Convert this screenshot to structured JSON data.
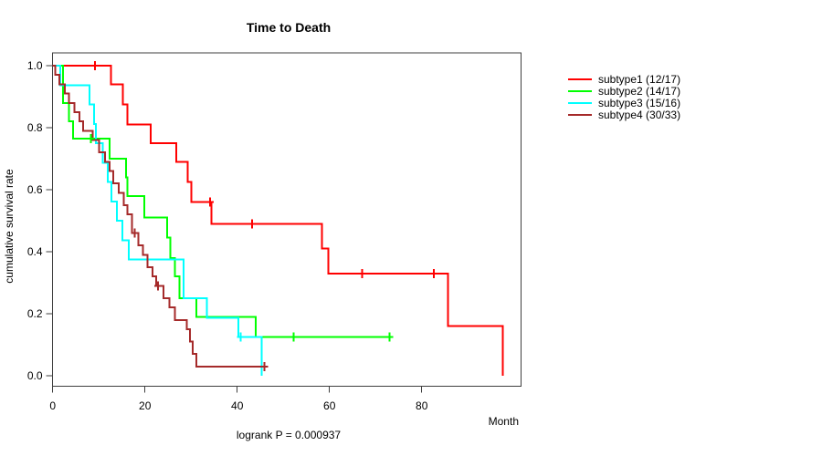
{
  "title": "Time to Death",
  "footnote": "logrank P = 0.000937",
  "axes": {
    "x_label": "Month",
    "y_label": "cumulative survival rate",
    "x_ticks": [
      0,
      20,
      40,
      60,
      80
    ],
    "y_ticks": [
      0.0,
      0.2,
      0.4,
      0.6,
      0.8,
      1.0
    ]
  },
  "legend": {
    "position": "right",
    "items": [
      {
        "label": "subtype1 (12/17)",
        "color": "#FF0000"
      },
      {
        "label": "subtype2 (14/17)",
        "color": "#00FF00"
      },
      {
        "label": "subtype3 (15/16)",
        "color": "#00FFFF"
      },
      {
        "label": "subtype4 (30/33)",
        "color": "#A52A2A"
      }
    ]
  },
  "chart_data": {
    "type": "line",
    "subtype": "kaplan_meier_step",
    "xlabel": "Month",
    "ylabel": "cumulative survival rate",
    "xlim": [
      0,
      101.5
    ],
    "ylim": [
      -0.03,
      1.04
    ],
    "grid": false,
    "legend_position": "right",
    "series": [
      {
        "name": "subtype1 (12/17)",
        "color": "#FF0000",
        "points": [
          [
            0,
            1.0
          ],
          [
            12.6,
            0.94
          ],
          [
            15.2,
            0.875
          ],
          [
            16.2,
            0.81
          ],
          [
            21.2,
            0.75
          ],
          [
            26.8,
            0.69
          ],
          [
            29.3,
            0.625
          ],
          [
            30.1,
            0.56
          ],
          [
            34.4,
            0.49
          ],
          [
            58.4,
            0.41
          ],
          [
            59.8,
            0.33
          ],
          [
            85.7,
            0.16
          ],
          [
            97.6,
            0.0
          ]
        ],
        "censors": [
          [
            9.2,
            1.0
          ],
          [
            34.1,
            0.56
          ],
          [
            43.2,
            0.49
          ],
          [
            67.1,
            0.33
          ],
          [
            82.6,
            0.33
          ]
        ],
        "end_time": 97.6
      },
      {
        "name": "subtype2 (14/17)",
        "color": "#00FF00",
        "points": [
          [
            0,
            1.0
          ],
          [
            2.2,
            0.88
          ],
          [
            3.5,
            0.82
          ],
          [
            4.4,
            0.765
          ],
          [
            12.3,
            0.7
          ],
          [
            15.9,
            0.64
          ],
          [
            16.2,
            0.58
          ],
          [
            19.9,
            0.51
          ],
          [
            24.8,
            0.445
          ],
          [
            25.5,
            0.38
          ],
          [
            26.5,
            0.32
          ],
          [
            27.5,
            0.25
          ],
          [
            31.1,
            0.19
          ],
          [
            44.0,
            0.125
          ]
        ],
        "censors": [
          [
            8.3,
            0.765
          ],
          [
            52.2,
            0.125
          ],
          [
            73.0,
            0.125
          ]
        ],
        "end_time": 73.0
      },
      {
        "name": "subtype3 (15/16)",
        "color": "#00FFFF",
        "points": [
          [
            0,
            1.0
          ],
          [
            1.6,
            0.9375
          ],
          [
            8.0,
            0.875
          ],
          [
            9.0,
            0.8125
          ],
          [
            9.4,
            0.75
          ],
          [
            10.9,
            0.6875
          ],
          [
            11.9,
            0.625
          ],
          [
            12.7,
            0.5625
          ],
          [
            13.9,
            0.5
          ],
          [
            15.1,
            0.4375
          ],
          [
            16.5,
            0.375
          ],
          [
            28.4,
            0.25
          ],
          [
            33.4,
            0.1875
          ],
          [
            40.3,
            0.125
          ],
          [
            45.3,
            0.0
          ]
        ],
        "censors": [
          [
            40.8,
            0.125
          ]
        ],
        "end_time": 45.3
      },
      {
        "name": "subtype4 (30/33)",
        "color": "#A52A2A",
        "points": [
          [
            0,
            1.0
          ],
          [
            0.6,
            0.97
          ],
          [
            1.4,
            0.94
          ],
          [
            2.6,
            0.91
          ],
          [
            3.5,
            0.88
          ],
          [
            4.7,
            0.85
          ],
          [
            5.8,
            0.82
          ],
          [
            6.6,
            0.79
          ],
          [
            8.7,
            0.76
          ],
          [
            10.1,
            0.72
          ],
          [
            11.3,
            0.69
          ],
          [
            12.3,
            0.66
          ],
          [
            13.1,
            0.62
          ],
          [
            14.3,
            0.59
          ],
          [
            15.4,
            0.55
          ],
          [
            16.2,
            0.52
          ],
          [
            17.2,
            0.46
          ],
          [
            18.6,
            0.42
          ],
          [
            19.6,
            0.39
          ],
          [
            20.6,
            0.35
          ],
          [
            21.6,
            0.32
          ],
          [
            22.4,
            0.29
          ],
          [
            24.0,
            0.25
          ],
          [
            25.3,
            0.22
          ],
          [
            26.5,
            0.18
          ],
          [
            29.1,
            0.15
          ],
          [
            29.8,
            0.11
          ],
          [
            30.4,
            0.07
          ],
          [
            31.1,
            0.03
          ]
        ],
        "censors": [
          [
            17.8,
            0.46
          ],
          [
            22.8,
            0.29
          ],
          [
            45.9,
            0.03
          ]
        ],
        "end_time": 45.9
      }
    ]
  }
}
